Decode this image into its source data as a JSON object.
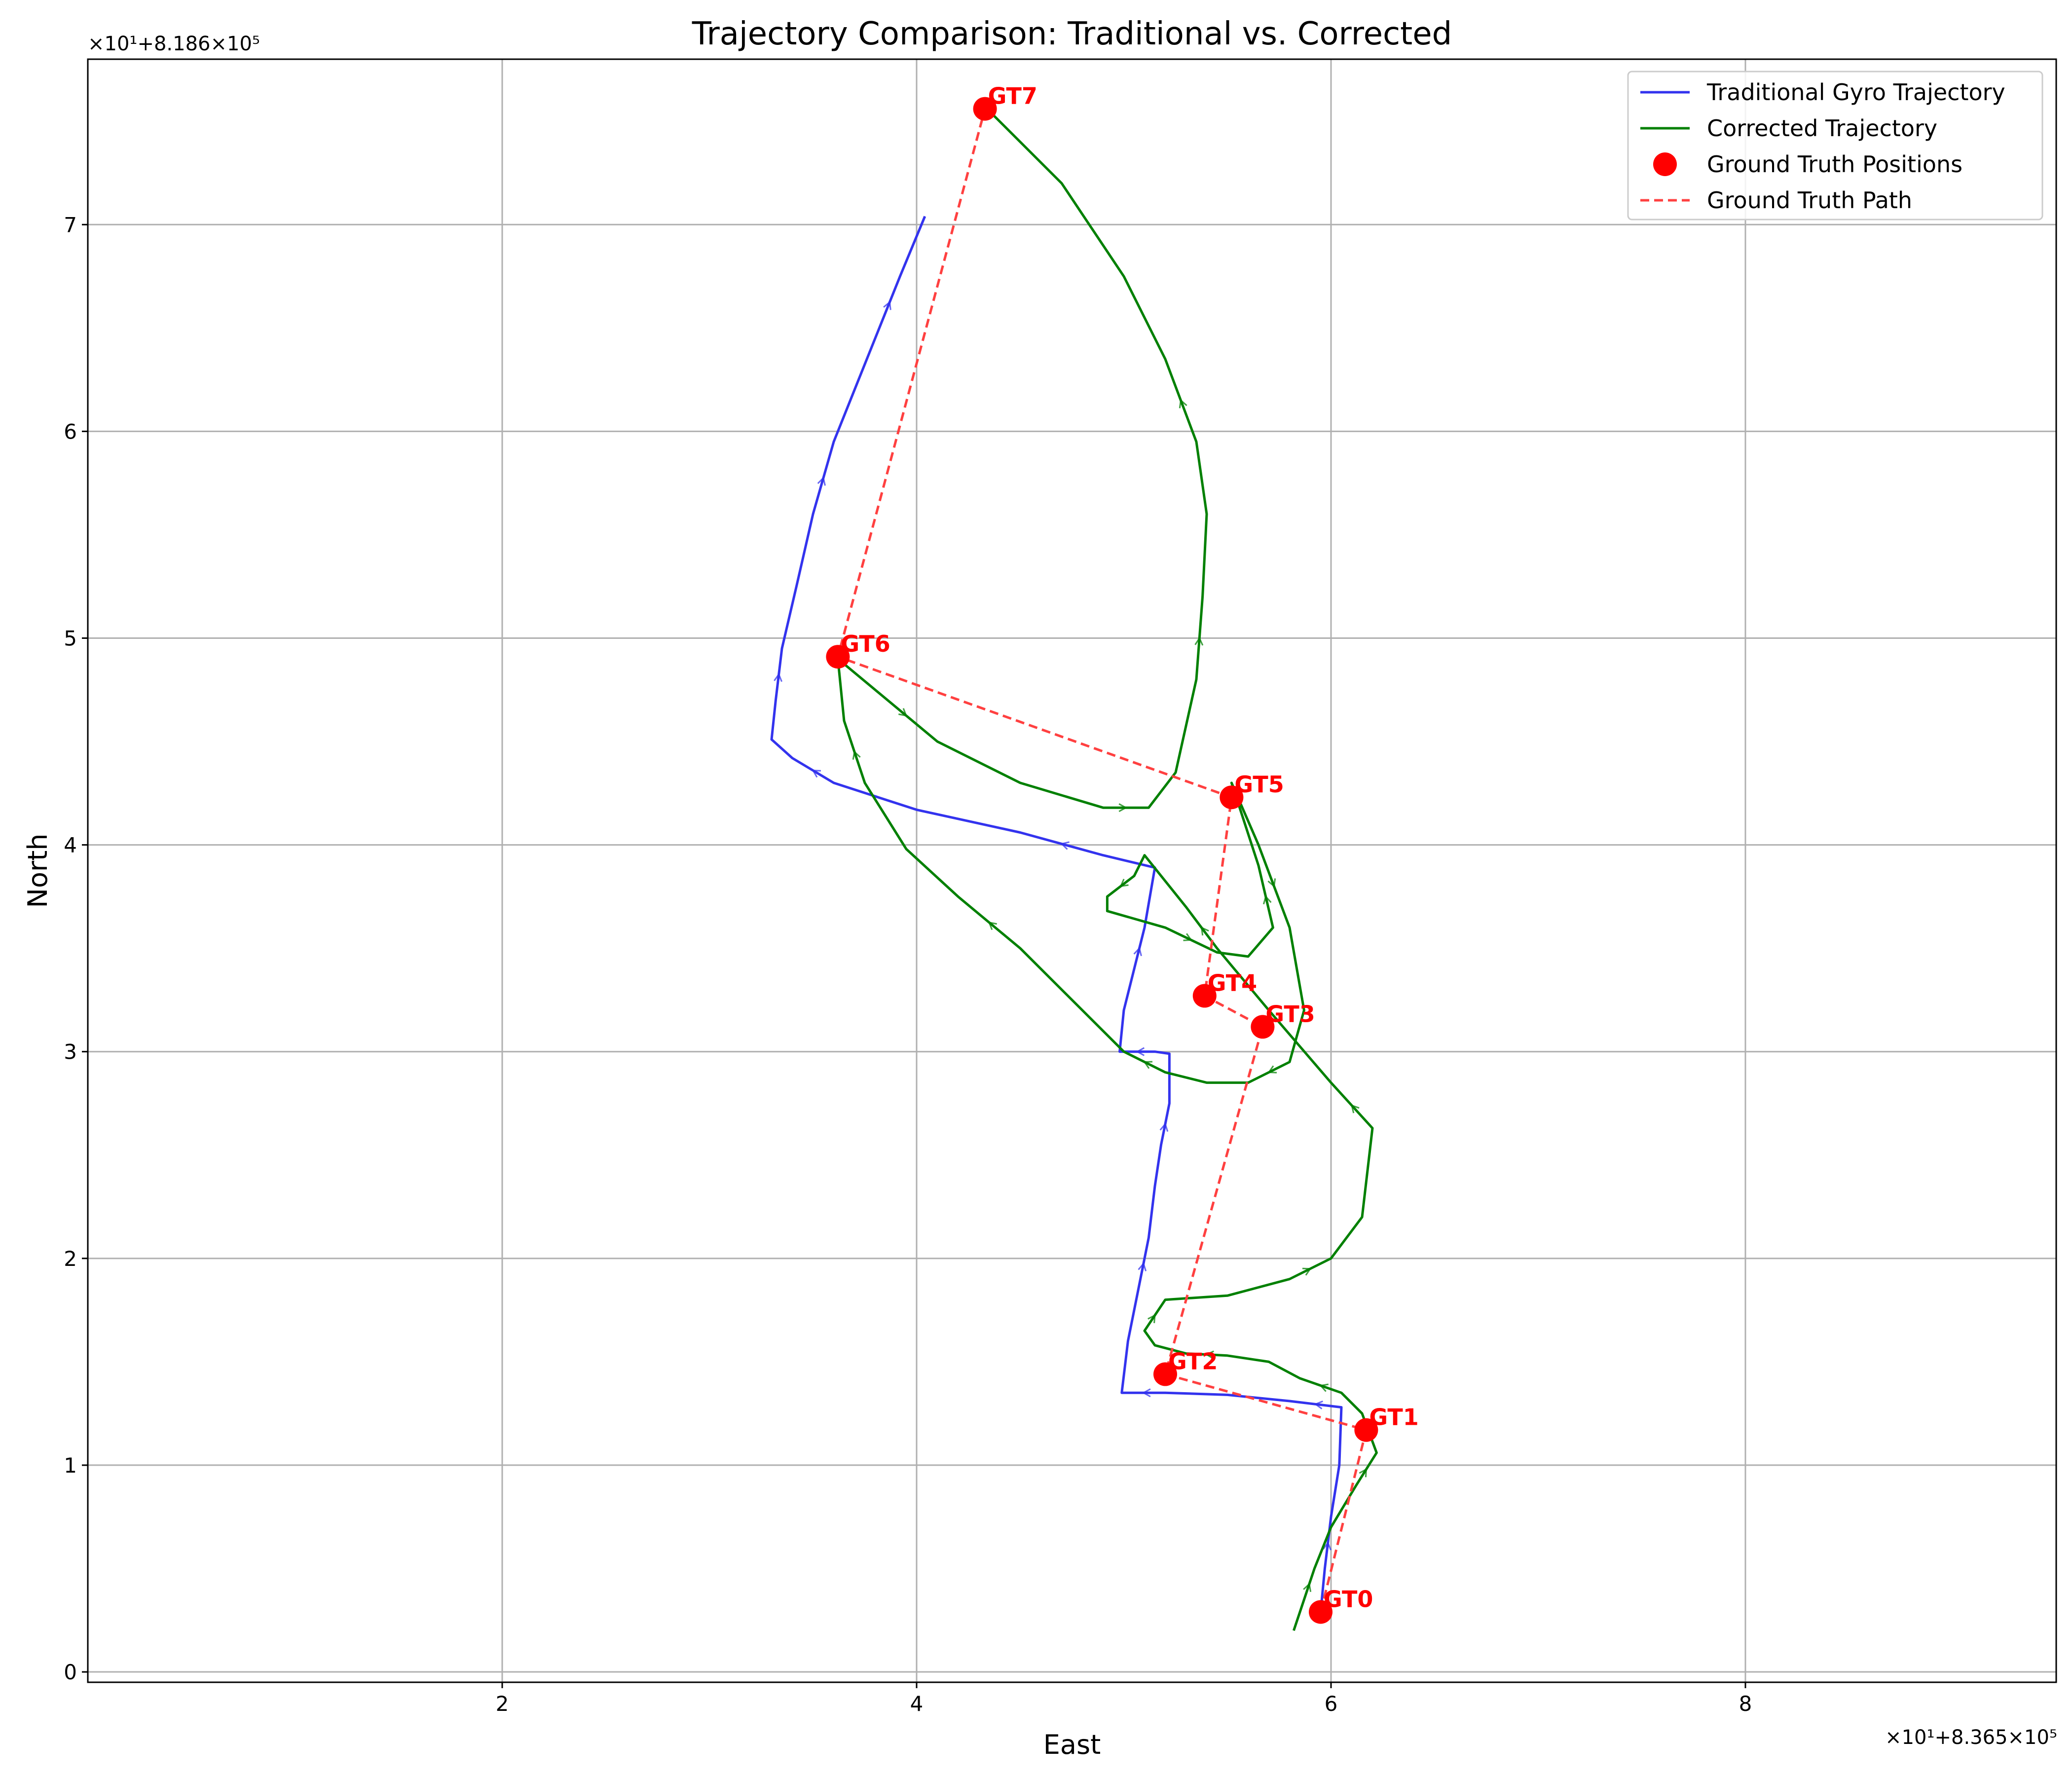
{
  "chart_data": {
    "type": "line",
    "title": "Trajectory Comparison: Traditional vs. Corrected",
    "xlabel": "East",
    "ylabel": "North",
    "x_offset_label": "×10¹+8.365×10⁵",
    "y_offset_label": "×10¹+8.186×10⁵",
    "xlim": [
      0,
      9.5
    ],
    "ylim": [
      -0.05,
      7.8
    ],
    "xticks": [
      2,
      4,
      6,
      8
    ],
    "yticks": [
      0,
      1,
      2,
      3,
      4,
      5,
      6,
      7
    ],
    "grid": true,
    "legend_position": "top-right",
    "series": [
      {
        "name": "Traditional Gyro Trajectory",
        "color": "#3333ee",
        "style": "solid",
        "points": [
          [
            5.95,
            0.29
          ],
          [
            5.97,
            0.5
          ],
          [
            6.0,
            0.75
          ],
          [
            6.04,
            1.0
          ],
          [
            6.05,
            1.28
          ],
          [
            5.8,
            1.31
          ],
          [
            5.5,
            1.34
          ],
          [
            5.2,
            1.35
          ],
          [
            4.99,
            1.35
          ],
          [
            5.02,
            1.6
          ],
          [
            5.07,
            1.85
          ],
          [
            5.12,
            2.1
          ],
          [
            5.15,
            2.35
          ],
          [
            5.18,
            2.55
          ],
          [
            5.22,
            2.75
          ],
          [
            5.22,
            2.99
          ],
          [
            5.15,
            3.0
          ],
          [
            4.98,
            3.0
          ],
          [
            5.0,
            3.2
          ],
          [
            5.05,
            3.4
          ],
          [
            5.1,
            3.6
          ],
          [
            5.15,
            3.89
          ],
          [
            4.9,
            3.95
          ],
          [
            4.5,
            4.06
          ],
          [
            4.0,
            4.17
          ],
          [
            3.6,
            4.3
          ],
          [
            3.4,
            4.42
          ],
          [
            3.3,
            4.51
          ],
          [
            3.32,
            4.7
          ],
          [
            3.35,
            4.95
          ],
          [
            3.42,
            5.25
          ],
          [
            3.5,
            5.6
          ],
          [
            3.6,
            5.95
          ],
          [
            3.72,
            6.25
          ],
          [
            3.82,
            6.5
          ],
          [
            3.92,
            6.75
          ],
          [
            4.04,
            7.04
          ]
        ]
      },
      {
        "name": "Corrected Trajectory",
        "color": "#008000",
        "style": "solid",
        "points": [
          [
            5.82,
            0.2
          ],
          [
            5.87,
            0.35
          ],
          [
            5.92,
            0.5
          ],
          [
            6.0,
            0.7
          ],
          [
            6.12,
            0.9
          ],
          [
            6.22,
            1.06
          ],
          [
            6.15,
            1.25
          ],
          [
            6.05,
            1.35
          ],
          [
            5.85,
            1.42
          ],
          [
            5.7,
            1.5
          ],
          [
            5.5,
            1.53
          ],
          [
            5.3,
            1.54
          ],
          [
            5.15,
            1.58
          ],
          [
            5.1,
            1.65
          ],
          [
            5.2,
            1.8
          ],
          [
            5.5,
            1.82
          ],
          [
            5.8,
            1.9
          ],
          [
            6.0,
            2.0
          ],
          [
            6.15,
            2.2
          ],
          [
            6.2,
            2.63
          ],
          [
            6.0,
            2.85
          ],
          [
            5.7,
            3.2
          ],
          [
            5.45,
            3.5
          ],
          [
            5.3,
            3.7
          ],
          [
            5.1,
            3.95
          ],
          [
            5.05,
            3.85
          ],
          [
            4.92,
            3.75
          ],
          [
            4.92,
            3.68
          ],
          [
            5.2,
            3.6
          ],
          [
            5.45,
            3.48
          ],
          [
            5.6,
            3.46
          ],
          [
            5.72,
            3.6
          ],
          [
            5.65,
            3.9
          ],
          [
            5.52,
            4.3
          ],
          [
            5.65,
            4.0
          ],
          [
            5.8,
            3.6
          ],
          [
            5.87,
            3.2
          ],
          [
            5.8,
            2.95
          ],
          [
            5.6,
            2.85
          ],
          [
            5.4,
            2.85
          ],
          [
            5.2,
            2.9
          ],
          [
            5.0,
            3.0
          ],
          [
            4.8,
            3.2
          ],
          [
            4.5,
            3.5
          ],
          [
            4.2,
            3.75
          ],
          [
            3.95,
            3.98
          ],
          [
            3.75,
            4.3
          ],
          [
            3.65,
            4.6
          ],
          [
            3.62,
            4.9
          ],
          [
            3.8,
            4.75
          ],
          [
            4.1,
            4.5
          ],
          [
            4.5,
            4.3
          ],
          [
            4.9,
            4.18
          ],
          [
            5.12,
            4.18
          ],
          [
            5.25,
            4.35
          ],
          [
            5.35,
            4.8
          ],
          [
            5.38,
            5.2
          ],
          [
            5.4,
            5.6
          ],
          [
            5.35,
            5.95
          ],
          [
            5.2,
            6.35
          ],
          [
            5.0,
            6.75
          ],
          [
            4.7,
            7.2
          ],
          [
            4.35,
            7.55
          ]
        ]
      },
      {
        "name": "Ground Truth Positions",
        "color": "#ff0000",
        "style": "marker"
      },
      {
        "name": "Ground Truth Path",
        "color": "#ff4040",
        "style": "dashed"
      }
    ],
    "ground_truth": [
      {
        "label": "GT0",
        "x": 5.95,
        "y": 0.29
      },
      {
        "label": "GT1",
        "x": 6.17,
        "y": 1.17
      },
      {
        "label": "GT2",
        "x": 5.2,
        "y": 1.44
      },
      {
        "label": "GT3",
        "x": 5.67,
        "y": 3.12
      },
      {
        "label": "GT4",
        "x": 5.39,
        "y": 3.27
      },
      {
        "label": "GT5",
        "x": 5.52,
        "y": 4.23
      },
      {
        "label": "GT6",
        "x": 3.62,
        "y": 4.91
      },
      {
        "label": "GT7",
        "x": 4.33,
        "y": 7.56
      }
    ]
  }
}
